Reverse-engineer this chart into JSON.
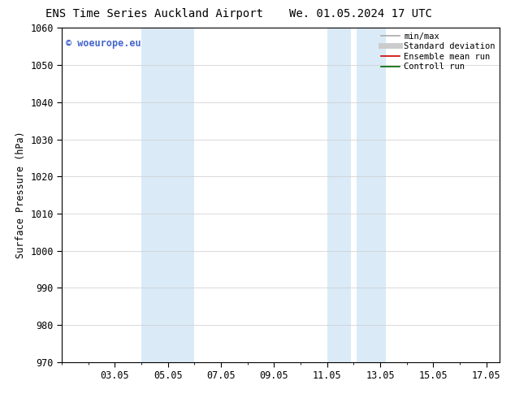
{
  "title_left": "ENS Time Series Auckland Airport",
  "title_right": "We. 01.05.2024 17 UTC",
  "ylabel": "Surface Pressure (hPa)",
  "ylim": [
    970,
    1060
  ],
  "yticks": [
    970,
    980,
    990,
    1000,
    1010,
    1020,
    1030,
    1040,
    1050,
    1060
  ],
  "xlim": [
    1.0,
    17.5
  ],
  "xtick_positions": [
    3,
    5,
    7,
    9,
    11,
    13,
    15,
    17
  ],
  "xtick_labels": [
    "03.05",
    "05.05",
    "07.05",
    "09.05",
    "11.05",
    "13.05",
    "15.05",
    "17.05"
  ],
  "shade_bands": [
    {
      "x_start": 4.0,
      "x_end": 6.0,
      "color": "#daeaf7"
    },
    {
      "x_start": 11.0,
      "x_end": 11.9,
      "color": "#daeaf7"
    },
    {
      "x_start": 12.1,
      "x_end": 13.2,
      "color": "#daeaf7"
    }
  ],
  "watermark_text": "© woeurope.eu",
  "watermark_color": "#4466cc",
  "legend_entries": [
    {
      "label": "min/max",
      "color": "#aaaaaa",
      "lw": 1.2
    },
    {
      "label": "Standard deviation",
      "color": "#cccccc",
      "lw": 5
    },
    {
      "label": "Ensemble mean run",
      "color": "#cc0000",
      "lw": 1.2
    },
    {
      "label": "Controll run",
      "color": "#006600",
      "lw": 1.2
    }
  ],
  "bg_color": "#ffffff",
  "grid_color": "#cccccc",
  "title_fontsize": 10,
  "tick_fontsize": 8.5,
  "ylabel_fontsize": 8.5
}
